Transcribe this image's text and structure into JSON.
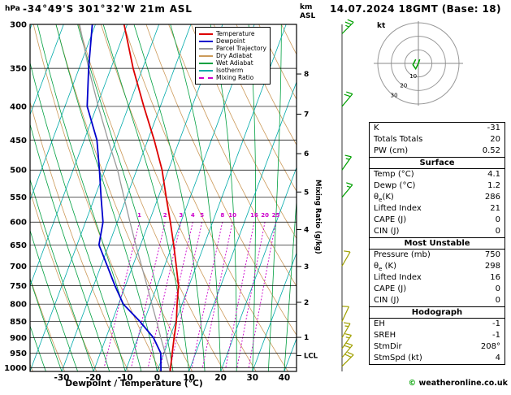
{
  "header": {
    "pressure_unit": "hPa",
    "station": "-34°49'S 301°32'W 21m ASL",
    "datetime": "14.07.2024 18GMT (Base: 18)"
  },
  "axes": {
    "xlabel": "Dewpoint / Temperature (°C)",
    "km_label": "km ASL",
    "km_ticks": [
      1,
      2,
      3,
      4,
      5,
      6,
      7,
      8
    ],
    "lcl_label": "LCL",
    "mixing_label": "Mixing Ratio (g/kg)"
  },
  "colors": {
    "temperature": "#dd0000",
    "dewpoint": "#0000cc",
    "parcel": "#9a9a9a",
    "dry_adiabat": "#cc9a5a",
    "wet_adiabat": "#00a040",
    "isotherm": "#00aaaa",
    "mixing_ratio": "#cc00cc",
    "barb_upper": "#00a000",
    "barb_lower": "#a0a000"
  },
  "legend": {
    "items": [
      {
        "label": "Temperature",
        "color": "#dd0000",
        "dashed": false
      },
      {
        "label": "Dewpoint",
        "color": "#0000cc",
        "dashed": false
      },
      {
        "label": "Parcel Trajectory",
        "color": "#9a9a9a",
        "dashed": false
      },
      {
        "label": "Dry Adiabat",
        "color": "#cc9a5a",
        "dashed": false
      },
      {
        "label": "Wet Adiabat",
        "color": "#00a040",
        "dashed": false
      },
      {
        "label": "Isotherm",
        "color": "#00aaaa",
        "dashed": false
      },
      {
        "label": "Mixing Ratio",
        "color": "#cc00cc",
        "dashed": true
      }
    ]
  },
  "chart_data": {
    "type": "skewt-log-p",
    "pressure_axis_hpa": [
      300,
      350,
      400,
      450,
      500,
      550,
      600,
      650,
      700,
      750,
      800,
      850,
      900,
      950,
      1000
    ],
    "temp_axis_c": [
      -30,
      -20,
      -10,
      0,
      10,
      20,
      30,
      40
    ],
    "mixing_ratio_lines_gkg": [
      1,
      2,
      3,
      4,
      5,
      8,
      10,
      16,
      20,
      25
    ],
    "isotherm_step_c": 10,
    "dry_adiabat_step_c": 10,
    "wet_adiabat_step_c": 5,
    "lcl_hpa": 958,
    "temperature_profile": [
      {
        "p": 1013,
        "t": 4.1
      },
      {
        "p": 950,
        "t": 2.6
      },
      {
        "p": 900,
        "t": 1.4
      },
      {
        "p": 850,
        "t": 0.2
      },
      {
        "p": 800,
        "t": -1.6
      },
      {
        "p": 750,
        "t": -3.3
      },
      {
        "p": 700,
        "t": -6.3
      },
      {
        "p": 650,
        "t": -9.6
      },
      {
        "p": 600,
        "t": -13.3
      },
      {
        "p": 550,
        "t": -17.5
      },
      {
        "p": 500,
        "t": -22.0
      },
      {
        "p": 450,
        "t": -28.0
      },
      {
        "p": 400,
        "t": -35.2
      },
      {
        "p": 350,
        "t": -43.0
      },
      {
        "p": 300,
        "t": -51.0
      }
    ],
    "dewpoint_profile": [
      {
        "p": 1013,
        "t": 1.2
      },
      {
        "p": 950,
        "t": -1.0
      },
      {
        "p": 900,
        "t": -5.1
      },
      {
        "p": 850,
        "t": -11.3
      },
      {
        "p": 800,
        "t": -18.5
      },
      {
        "p": 750,
        "t": -23.3
      },
      {
        "p": 700,
        "t": -28.0
      },
      {
        "p": 650,
        "t": -33.1
      },
      {
        "p": 600,
        "t": -34.5
      },
      {
        "p": 550,
        "t": -38.0
      },
      {
        "p": 500,
        "t": -41.7
      },
      {
        "p": 450,
        "t": -46.0
      },
      {
        "p": 400,
        "t": -53.0
      },
      {
        "p": 350,
        "t": -57.0
      },
      {
        "p": 300,
        "t": -61.0
      }
    ],
    "parcel_profile": [
      {
        "p": 1013,
        "t": 4.1
      },
      {
        "p": 958,
        "t": 0.9
      },
      {
        "p": 900,
        "t": -2.8
      },
      {
        "p": 850,
        "t": -6.0
      },
      {
        "p": 800,
        "t": -9.5
      },
      {
        "p": 750,
        "t": -13.2
      },
      {
        "p": 700,
        "t": -17.2
      },
      {
        "p": 650,
        "t": -21.5
      },
      {
        "p": 600,
        "t": -26.0
      },
      {
        "p": 550,
        "t": -30.8
      },
      {
        "p": 500,
        "t": -36.0
      },
      {
        "p": 450,
        "t": -42.5
      },
      {
        "p": 400,
        "t": -49.5
      },
      {
        "p": 350,
        "t": -57.0
      },
      {
        "p": 300,
        "t": -65.0
      }
    ],
    "wind_barbs": [
      {
        "p": 310,
        "spd": 25,
        "dir": 45,
        "color": "#00a000"
      },
      {
        "p": 400,
        "spd": 20,
        "dir": 40,
        "color": "#00a000"
      },
      {
        "p": 500,
        "spd": 15,
        "dir": 35,
        "color": "#00a000"
      },
      {
        "p": 550,
        "spd": 15,
        "dir": 40,
        "color": "#00a000"
      },
      {
        "p": 700,
        "spd": 10,
        "dir": 30,
        "color": "#a0a000"
      },
      {
        "p": 850,
        "spd": 10,
        "dir": 25,
        "color": "#a0a000"
      },
      {
        "p": 900,
        "spd": 15,
        "dir": 30,
        "color": "#a0a000"
      },
      {
        "p": 935,
        "spd": 15,
        "dir": 35,
        "color": "#a0a000"
      },
      {
        "p": 965,
        "spd": 20,
        "dir": 40,
        "color": "#a0a000"
      },
      {
        "p": 995,
        "spd": 20,
        "dir": 45,
        "color": "#a0a000"
      }
    ]
  },
  "hodograph": {
    "unit": "kt",
    "rings": [
      10,
      20,
      30
    ],
    "ring_labels": [
      "10",
      "20",
      "30"
    ],
    "trace": [
      [
        1,
        3
      ],
      [
        0,
        0
      ],
      [
        -2,
        -4
      ],
      [
        -4,
        -1
      ],
      [
        -2,
        3
      ]
    ]
  },
  "table": {
    "top_rows": [
      {
        "label": "K",
        "value": "-31"
      },
      {
        "label": "Totals Totals",
        "value": "20"
      },
      {
        "label": "PW (cm)",
        "value": "0.52"
      }
    ],
    "sections": [
      {
        "title": "Surface",
        "rows": [
          {
            "label": "Temp (°C)",
            "value": "4.1"
          },
          {
            "label": "Dewp (°C)",
            "value": "1.2"
          },
          {
            "label": "θe(K)",
            "value": "286"
          },
          {
            "label": "Lifted Index",
            "value": "21"
          },
          {
            "label": "CAPE (J)",
            "value": "0"
          },
          {
            "label": "CIN (J)",
            "value": "0"
          }
        ]
      },
      {
        "title": "Most Unstable",
        "rows": [
          {
            "label": "Pressure (mb)",
            "value": "750"
          },
          {
            "label": "θe (K)",
            "value": "298"
          },
          {
            "label": "Lifted Index",
            "value": "16"
          },
          {
            "label": "CAPE (J)",
            "value": "0"
          },
          {
            "label": "CIN (J)",
            "value": "0"
          }
        ]
      },
      {
        "title": "Hodograph",
        "rows": [
          {
            "label": "EH",
            "value": "-1"
          },
          {
            "label": "SREH",
            "value": "-1"
          },
          {
            "label": "StmDir",
            "value": "208°"
          },
          {
            "label": "StmSpd (kt)",
            "value": "4"
          }
        ]
      }
    ]
  },
  "footer": {
    "symbol": "©",
    "text": "weatheronline.co.uk"
  }
}
